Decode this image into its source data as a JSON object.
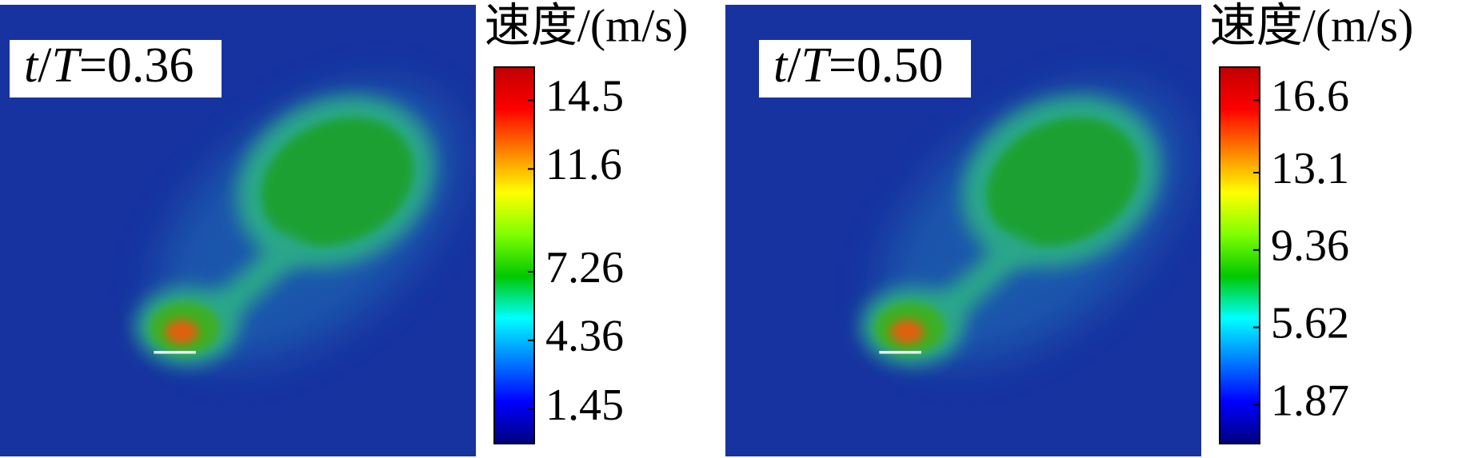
{
  "chart_data": [
    {
      "type": "colormap",
      "title": "速度/(m/s)",
      "annotation_parts": [
        "t",
        "/",
        "T",
        "=0.36"
      ],
      "colormap": "jet",
      "clim": [
        0,
        15.9
      ],
      "ticks": [
        14.5,
        11.6,
        7.26,
        4.36,
        1.45
      ]
    },
    {
      "type": "colormap",
      "title": "速度/(m/s)",
      "annotation_parts": [
        "t",
        "/",
        "T",
        "=0.50"
      ],
      "colormap": "jet",
      "clim": [
        0,
        18.2
      ],
      "ticks": [
        16.6,
        13.1,
        9.36,
        5.62,
        1.87
      ]
    }
  ]
}
